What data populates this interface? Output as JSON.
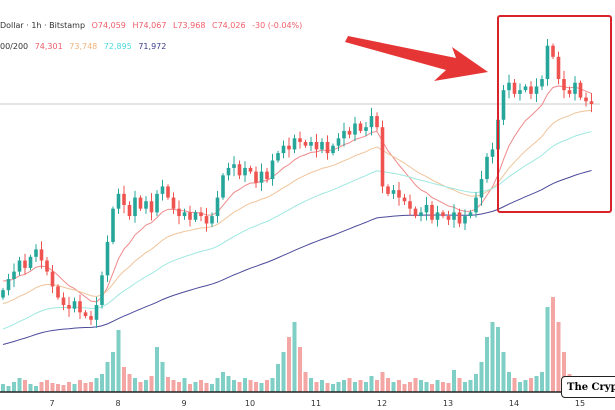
{
  "legend": {
    "symbol": "Dollar · 1h · Bitstamp",
    "open": "O74,059",
    "high": "H74,067",
    "low": "L73,968",
    "close": "C74,026",
    "change": "-30 (-0.04%)",
    "ma_label": "00/200",
    "ma_values": [
      {
        "value": "74,301",
        "color": "#ef5d6a"
      },
      {
        "value": "73,748",
        "color": "#f0b27a"
      },
      {
        "value": "72,895",
        "color": "#4dd9d9"
      },
      {
        "value": "71,972",
        "color": "#3c3c8c"
      }
    ]
  },
  "watermark": "The Crypt",
  "annotation": {
    "box_color": "#d8232a",
    "arrow_color": "#e53535"
  },
  "colors": {
    "up": "#26a69a",
    "down": "#ef5350",
    "up_volume": "#7fcfc6",
    "down_volume": "#f4a6a4",
    "price_line": "#cccccc"
  },
  "chart_data": {
    "type": "candlestick",
    "x_tick_labels": [
      "7",
      "8",
      "9",
      "10",
      "11",
      "12",
      "13",
      "14",
      "15"
    ],
    "last_price": 74026,
    "closes": [
      69000,
      69300,
      69500,
      69800,
      69600,
      69900,
      70100,
      69800,
      69500,
      69100,
      68800,
      68600,
      68500,
      68700,
      68400,
      68300,
      68200,
      68600,
      69400,
      70300,
      71200,
      71600,
      71300,
      71000,
      71500,
      71200,
      71400,
      71100,
      71600,
      71800,
      71500,
      71200,
      71000,
      71100,
      70900,
      71100,
      71000,
      70800,
      71000,
      71500,
      72100,
      72300,
      72400,
      72100,
      72300,
      72200,
      71900,
      72200,
      72000,
      72500,
      72700,
      72900,
      72800,
      73100,
      73000,
      72900,
      73000,
      72800,
      73000,
      72700,
      72900,
      73100,
      73300,
      73200,
      73500,
      73300,
      73400,
      73700,
      73400,
      71800,
      71600,
      71700,
      71500,
      71400,
      71200,
      71000,
      71100,
      71300,
      70900,
      71100,
      71000,
      70900,
      71100,
      70800,
      71000,
      71100,
      71500,
      72000,
      72600,
      72800,
      73600,
      74400,
      74600,
      74300,
      74400,
      74500,
      74300,
      74500,
      74700,
      75600,
      75300,
      74700,
      74400,
      74300,
      74600,
      74200,
      74100,
      74026
    ],
    "volume_relative": [
      8,
      6,
      10,
      14,
      12,
      8,
      6,
      10,
      12,
      9,
      8,
      7,
      10,
      8,
      12,
      9,
      10,
      14,
      18,
      30,
      40,
      62,
      25,
      18,
      14,
      10,
      12,
      16,
      45,
      30,
      15,
      12,
      10,
      14,
      8,
      10,
      12,
      9,
      8,
      14,
      20,
      16,
      12,
      10,
      14,
      12,
      10,
      9,
      12,
      14,
      28,
      40,
      55,
      70,
      45,
      20,
      14,
      10,
      12,
      9,
      8,
      10,
      12,
      14,
      10,
      12,
      10,
      16,
      12,
      20,
      14,
      10,
      12,
      8,
      10,
      14,
      12,
      10,
      8,
      12,
      10,
      9,
      22,
      14,
      10,
      12,
      18,
      30,
      55,
      70,
      65,
      40,
      20,
      14,
      10,
      12,
      14,
      16,
      20,
      85,
      95,
      70,
      40,
      18,
      14,
      12,
      10,
      8
    ],
    "grid": false
  }
}
